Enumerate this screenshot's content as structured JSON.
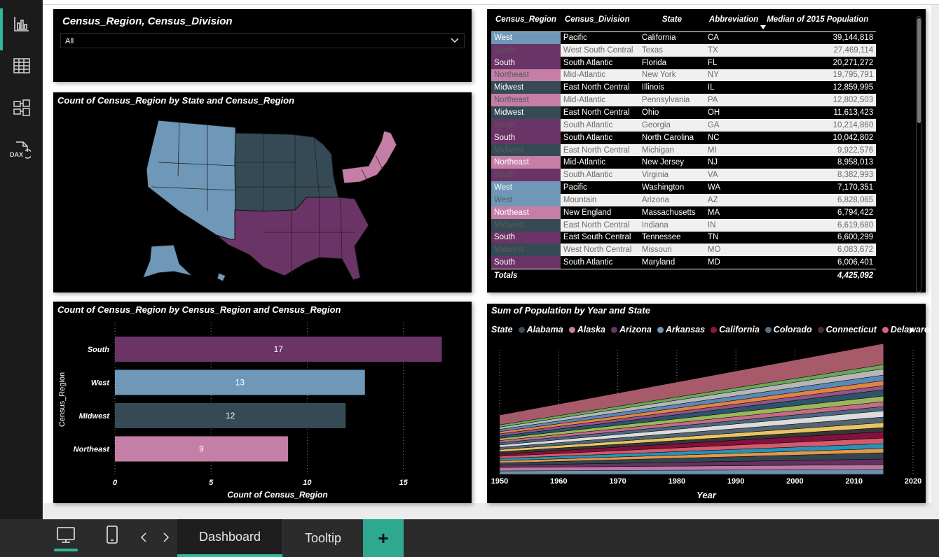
{
  "rail": {
    "items": [
      {
        "name": "report-view-icon"
      },
      {
        "name": "table-view-icon"
      },
      {
        "name": "model-view-icon"
      },
      {
        "name": "dax-query-view-icon",
        "label": "DAX"
      }
    ]
  },
  "slicer": {
    "title": "Census_Region, Census_Division",
    "selected": "All"
  },
  "colors": {
    "West": "#6f98b8",
    "South": "#6b3466",
    "Midwest": "#354a55",
    "Northeast": "#c57fa6",
    "accent": "#2fb89c"
  },
  "map": {
    "title": "Count of Census_Region by State and Census_Region"
  },
  "bar_chart": {
    "title": "Count of Census_Region by Census_Region and Census_Region"
  },
  "area_chart": {
    "title": "Sum of Population by Year and State",
    "legend_label": "State",
    "legend_items": [
      {
        "name": "Alabama",
        "color": "#3b4a55"
      },
      {
        "name": "Alaska",
        "color": "#c57fa6"
      },
      {
        "name": "Arizona",
        "color": "#6b3466"
      },
      {
        "name": "Arkansas",
        "color": "#6f98b8"
      },
      {
        "name": "California",
        "color": "#8a1440"
      },
      {
        "name": "Colorado",
        "color": "#4f6f88"
      },
      {
        "name": "Connecticut",
        "color": "#4a2a44"
      },
      {
        "name": "Delaware",
        "color": "#e05f90"
      }
    ]
  },
  "table": {
    "headers": [
      "Census_Region",
      "Census_Division",
      "State",
      "Abbreviation",
      "Median of 2015 Population"
    ],
    "rows": [
      [
        "West",
        "Pacific",
        "California",
        "CA",
        "39,144,818"
      ],
      [
        "South",
        "West South Central",
        "Texas",
        "TX",
        "27,469,114"
      ],
      [
        "South",
        "South Atlantic",
        "Florida",
        "FL",
        "20,271,272"
      ],
      [
        "Northeast",
        "Mid-Atlantic",
        "New York",
        "NY",
        "19,795,791"
      ],
      [
        "Midwest",
        "East North Central",
        "Illinois",
        "IL",
        "12,859,995"
      ],
      [
        "Northeast",
        "Mid-Atlantic",
        "Pennsylvania",
        "PA",
        "12,802,503"
      ],
      [
        "Midwest",
        "East North Central",
        "Ohio",
        "OH",
        "11,613,423"
      ],
      [
        "South",
        "South Atlantic",
        "Georgia",
        "GA",
        "10,214,860"
      ],
      [
        "South",
        "South Atlantic",
        "North Carolina",
        "NC",
        "10,042,802"
      ],
      [
        "Midwest",
        "East North Central",
        "Michigan",
        "MI",
        "9,922,576"
      ],
      [
        "Northeast",
        "Mid-Atlantic",
        "New Jersey",
        "NJ",
        "8,958,013"
      ],
      [
        "South",
        "South Atlantic",
        "Virginia",
        "VA",
        "8,382,993"
      ],
      [
        "West",
        "Pacific",
        "Washington",
        "WA",
        "7,170,351"
      ],
      [
        "West",
        "Mountain",
        "Arizona",
        "AZ",
        "6,828,065"
      ],
      [
        "Northeast",
        "New England",
        "Massachusetts",
        "MA",
        "6,794,422"
      ],
      [
        "Midwest",
        "East North Central",
        "Indiana",
        "IN",
        "6,619,680"
      ],
      [
        "South",
        "East South Central",
        "Tennessee",
        "TN",
        "6,600,299"
      ],
      [
        "Midwest",
        "West North Central",
        "Missouri",
        "MO",
        "6,083,672"
      ],
      [
        "South",
        "South Atlantic",
        "Maryland",
        "MD",
        "6,006,401"
      ]
    ],
    "totals_label": "Totals",
    "totals_value": "4,425,092"
  },
  "bottom": {
    "tabs": [
      "Dashboard",
      "Tooltip"
    ],
    "add_label": "+"
  },
  "chart_data": [
    {
      "type": "bar",
      "title": "Count of Census_Region by Census_Region and Census_Region",
      "categories": [
        "South",
        "West",
        "Midwest",
        "Northeast"
      ],
      "values": [
        17,
        13,
        12,
        9
      ],
      "xlabel": "Count of Census_Region",
      "ylabel": "Census_Region",
      "xlim": [
        0,
        17
      ],
      "xticks": [
        0,
        5,
        10,
        15
      ],
      "orientation": "horizontal",
      "grid": true
    },
    {
      "type": "area",
      "title": "Sum of Population by Year and State",
      "xlabel": "Year",
      "xlim": [
        1950,
        2020
      ],
      "xticks": [
        1950,
        1960,
        1970,
        1980,
        1990,
        2000,
        2010,
        2020
      ],
      "stacked": true,
      "legend_title": "State",
      "legend_position": "top",
      "series_names": [
        "Alabama",
        "Alaska",
        "Arizona",
        "Arkansas",
        "California",
        "Colorado",
        "Connecticut",
        "Delaware"
      ]
    }
  ]
}
